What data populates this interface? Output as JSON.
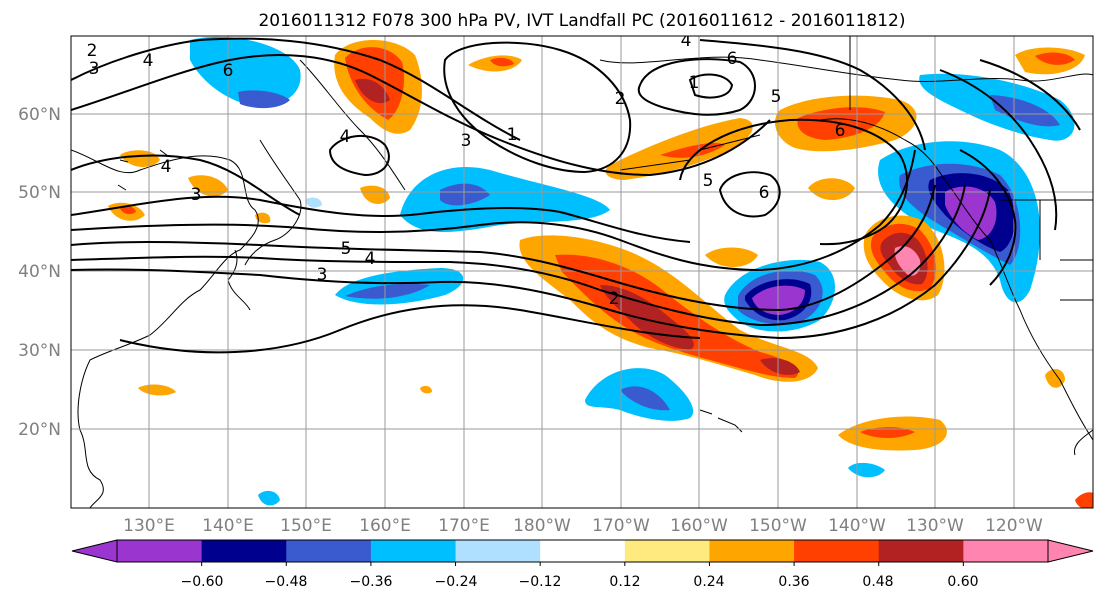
{
  "title": "2016011312 F078 300 hPa PV, IVT Landfall PC (2016011612 - 2016011812)",
  "lat_labels": [
    "60°N",
    "50°N",
    "40°N",
    "30°N",
    "20°N"
  ],
  "lon_labels": [
    "130°E",
    "140°E",
    "150°E",
    "160°E",
    "170°E",
    "180°W",
    "170°W",
    "160°W",
    "150°W",
    "140°W",
    "130°W",
    "120°W"
  ],
  "colorbar": {
    "colors": [
      "#9a35cf",
      "#00008f",
      "#3a5bd0",
      "#00bfff",
      "#b0e0ff",
      "#ffffff",
      "#ffea80",
      "#ffa500",
      "#ff4000",
      "#b22222",
      "#ff85b0"
    ],
    "tick_labels": [
      "−0.60",
      "−0.48",
      "−0.36",
      "−0.24",
      "−0.12",
      "0.12",
      "0.24",
      "0.36",
      "0.48",
      "0.60"
    ]
  },
  "contour_labels": [
    "2",
    "3",
    "4",
    "6",
    "4",
    "3",
    "4",
    "1",
    "3",
    "5",
    "4",
    "3",
    "2",
    "6",
    "2",
    "5",
    "6",
    "1",
    "5",
    "6",
    "4"
  ]
}
